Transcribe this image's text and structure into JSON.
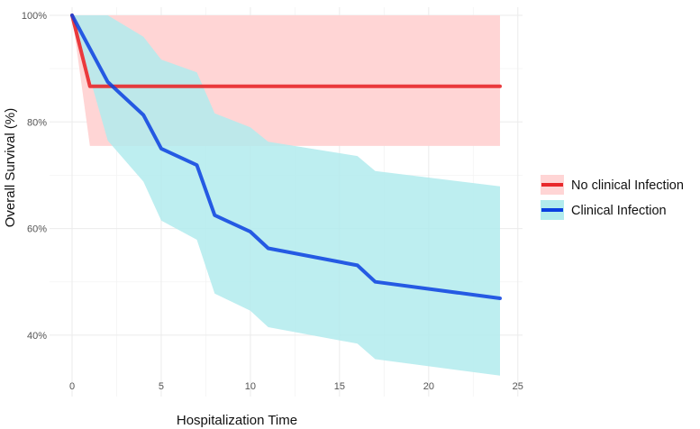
{
  "chart_data": {
    "type": "line",
    "xlabel": "Hospitalization Time",
    "ylabel": "Overall Survival (%)",
    "xlim": [
      0,
      24
    ],
    "ylim": [
      30,
      100
    ],
    "x_ticks": [
      0,
      5,
      10,
      15,
      20,
      25
    ],
    "x_tick_labels": [
      "0",
      "5",
      "10",
      "15",
      "20",
      "25"
    ],
    "y_ticks": [
      40,
      60,
      80,
      100
    ],
    "y_tick_labels": [
      "40%",
      "60%",
      "80%",
      "100%"
    ],
    "grid": true,
    "legend_position": "right",
    "series": [
      {
        "name": "No clinical Infection",
        "color": "#e8282b",
        "band_color": "#ffd5d5",
        "x": [
          0,
          1,
          24
        ],
        "y": [
          100,
          86.7,
          86.7
        ],
        "band_x": [
          0,
          1,
          24
        ],
        "band_upper": [
          100,
          100,
          100
        ],
        "band_lower": [
          100,
          75.5,
          75.5
        ]
      },
      {
        "name": "Clinical Infection",
        "color": "#0a3fe0",
        "band_color": "#b2ebed",
        "x": [
          0,
          2,
          4,
          5,
          7,
          8,
          10,
          11,
          16,
          17,
          24
        ],
        "y": [
          100,
          87.5,
          81.3,
          75,
          71.9,
          62.5,
          59.4,
          56.3,
          53.1,
          50,
          46.9
        ],
        "band_x": [
          0,
          2,
          4,
          5,
          7,
          8,
          10,
          11,
          16,
          17,
          24
        ],
        "band_upper": [
          100,
          100,
          96,
          91.7,
          89.3,
          81.6,
          79,
          76.3,
          73.6,
          70.8,
          67.9
        ],
        "band_lower": [
          100,
          76.5,
          68.8,
          61.5,
          57.9,
          47.8,
          44.6,
          41.5,
          38.4,
          35.5,
          32.4
        ]
      }
    ]
  }
}
